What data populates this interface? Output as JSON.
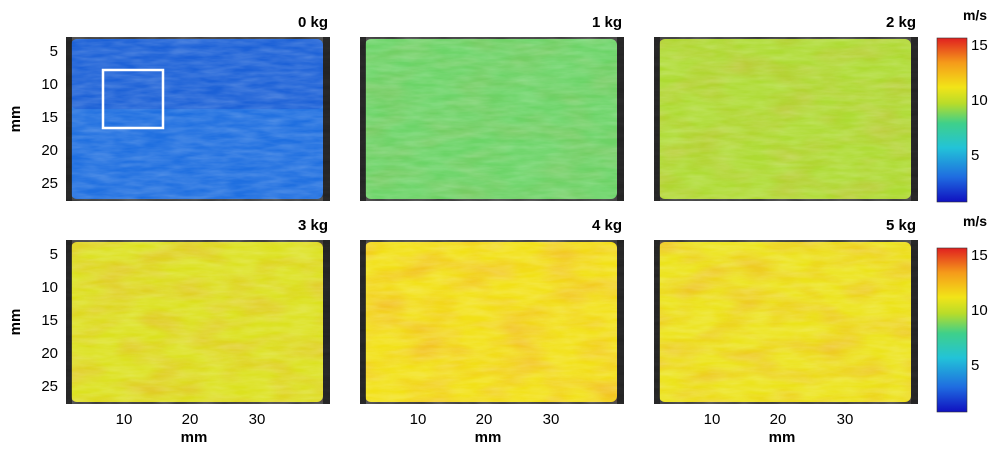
{
  "figure": {
    "panels": [
      {
        "label": "0 kg",
        "level": 0.15
      },
      {
        "label": "1 kg",
        "level": 0.48
      },
      {
        "label": "2 kg",
        "level": 0.56
      },
      {
        "label": "3 kg",
        "level": 0.66
      },
      {
        "label": "4 kg",
        "level": 0.72
      },
      {
        "label": "5 kg",
        "level": 0.7
      }
    ],
    "y_axis_label": "mm",
    "x_axis_label": "mm",
    "y_ticks": [
      "5",
      "10",
      "15",
      "20",
      "25"
    ],
    "x_ticks": [
      "10",
      "20",
      "30"
    ],
    "colorbar": {
      "unit": "m/s",
      "ticks": [
        "15",
        "10",
        "5"
      ],
      "colors": [
        "#1010c0",
        "#1f6be0",
        "#22c3d8",
        "#3fd08a",
        "#b8dc2a",
        "#f2e418",
        "#f59a1a",
        "#e02020"
      ]
    },
    "roi_box_color": "#ffffff"
  }
}
